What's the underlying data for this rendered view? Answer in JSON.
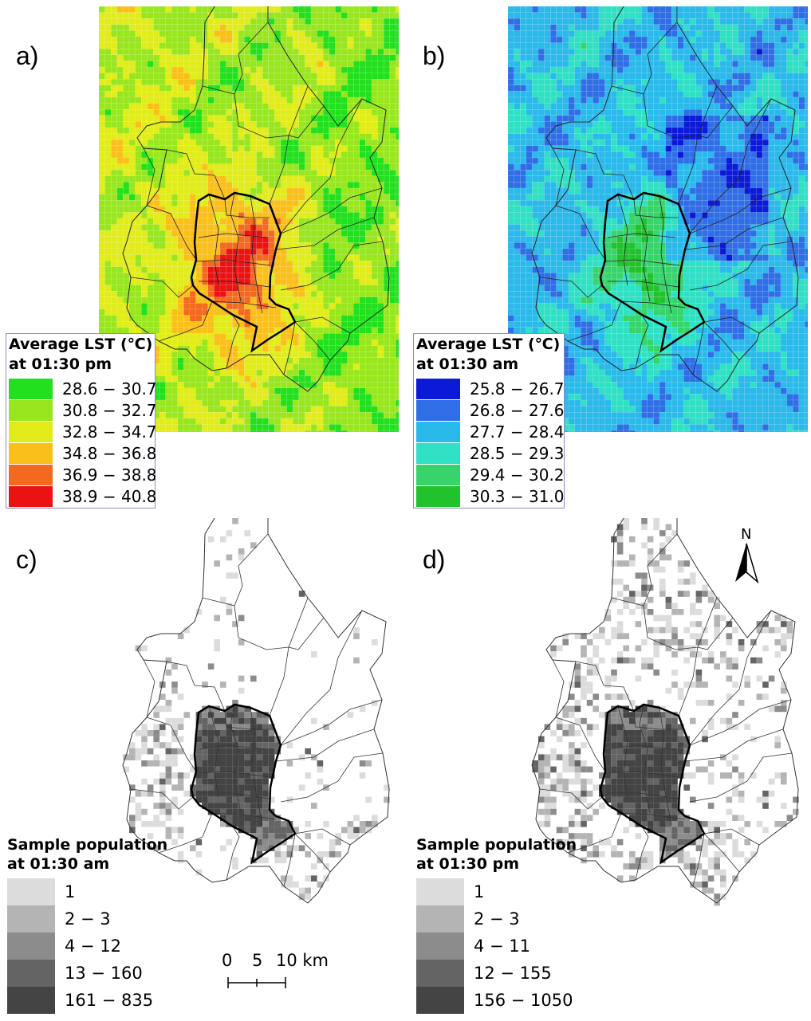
{
  "panels": {
    "a": {
      "label": "a)"
    },
    "b": {
      "label": "b)"
    },
    "c": {
      "label": "c)"
    },
    "d": {
      "label": "d)"
    }
  },
  "legend_a": {
    "title1": "Average LST (℃)",
    "title2": "at 01:30 pm",
    "items": [
      {
        "label": "28.6 − 30.7",
        "color": "#22e01e"
      },
      {
        "label": "30.8 − 32.7",
        "color": "#98e61e"
      },
      {
        "label": "32.8 − 34.7",
        "color": "#e1ec1a"
      },
      {
        "label": "34.8 − 36.8",
        "color": "#fbbf1a"
      },
      {
        "label": "36.9 − 38.8",
        "color": "#f36a1e"
      },
      {
        "label": "38.9 − 40.8",
        "color": "#ea1212"
      }
    ]
  },
  "legend_b": {
    "title1": "Average LST (℃)",
    "title2": "at 01:30 am",
    "items": [
      {
        "label": "25.8 − 26.7",
        "color": "#0b1ad6"
      },
      {
        "label": "26.8 − 27.6",
        "color": "#2f6ee6"
      },
      {
        "label": "27.7 − 28.4",
        "color": "#29b9ea"
      },
      {
        "label": "28.5 − 29.3",
        "color": "#2fe0c4"
      },
      {
        "label": "29.4 − 30.2",
        "color": "#36d46a"
      },
      {
        "label": "30.3 − 31.0",
        "color": "#22c22c"
      }
    ]
  },
  "legend_c": {
    "title1": "Sample population",
    "title2": "at 01:30 am",
    "items": [
      {
        "label": "1",
        "color": "#dcdcdc"
      },
      {
        "label": "2 − 3",
        "color": "#b4b4b4"
      },
      {
        "label": "4 − 12",
        "color": "#8c8c8c"
      },
      {
        "label": "13 − 160",
        "color": "#646464"
      },
      {
        "label": "161 − 835",
        "color": "#444444"
      }
    ]
  },
  "legend_d": {
    "title1": "Sample population",
    "title2": "at 01:30 pm",
    "items": [
      {
        "label": "1",
        "color": "#dcdcdc"
      },
      {
        "label": "2 − 3",
        "color": "#b4b4b4"
      },
      {
        "label": "4 − 11",
        "color": "#8c8c8c"
      },
      {
        "label": "12 − 155",
        "color": "#646464"
      },
      {
        "label": "156 − 1050",
        "color": "#444444"
      }
    ]
  },
  "scale_bar": {
    "t0": "0",
    "t5": "5",
    "t10": "10 km"
  },
  "north_arrow": {
    "label": "N"
  }
}
